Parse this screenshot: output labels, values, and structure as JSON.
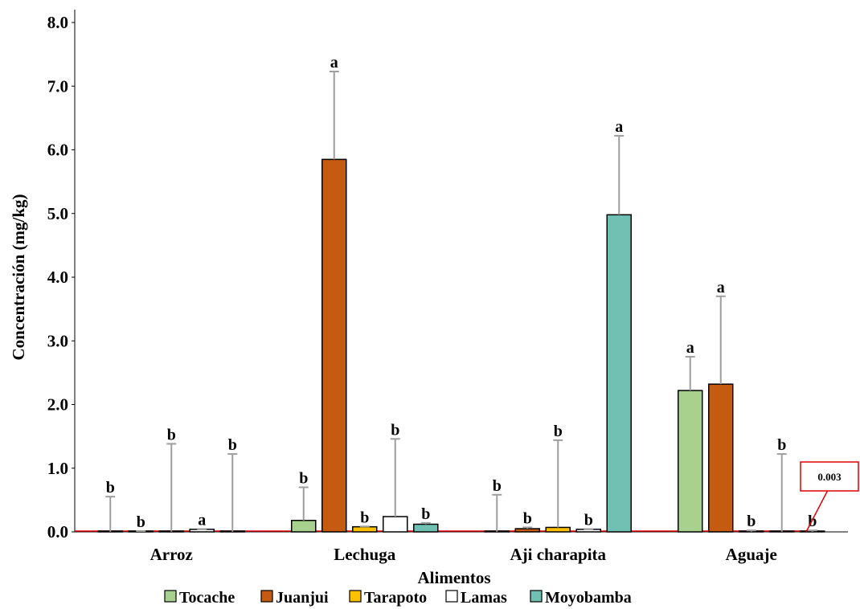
{
  "chart_data": {
    "type": "bar",
    "title": "",
    "xlabel": "Alimentos",
    "ylabel": "Concentración (mg/kg)",
    "ylim": [
      0,
      8
    ],
    "yticks": [
      "0.0",
      "1.0",
      "2.0",
      "3.0",
      "4.0",
      "5.0",
      "6.0",
      "7.0",
      "8.0"
    ],
    "categories": [
      "Arroz",
      "Lechuga",
      "Aji charapita",
      "Aguaje"
    ],
    "legend_position": "bottom",
    "grid": false,
    "series": [
      {
        "name": "Tocache",
        "color": "#a9d18e",
        "values": [
          0.003,
          0.18,
          0.003,
          2.22
        ],
        "error": [
          0.55,
          0.52,
          0.58,
          0.53
        ],
        "letters": [
          "b",
          "b",
          "b",
          "a"
        ]
      },
      {
        "name": "Juanjui",
        "color": "#c55a11",
        "values": [
          0.003,
          5.85,
          0.05,
          2.32
        ],
        "error": [
          0.01,
          1.38,
          0.02,
          1.38
        ],
        "letters": [
          "b",
          "a",
          "b",
          "a"
        ]
      },
      {
        "name": "Tarapoto",
        "color": "#ffc000",
        "values": [
          0.003,
          0.08,
          0.07,
          0.003
        ],
        "error": [
          1.38,
          0.005,
          1.37,
          0.02
        ],
        "letters": [
          "b",
          "b",
          "b",
          "b"
        ]
      },
      {
        "name": "Lamas",
        "color": "#ffffff",
        "values": [
          0.04,
          0.24,
          0.04,
          0.003
        ],
        "error": [
          0.005,
          1.22,
          0.005,
          1.22
        ],
        "letters": [
          "a",
          "b",
          "b",
          "b"
        ]
      },
      {
        "name": "Moyobamba",
        "color": "#70c1b3",
        "values": [
          0.003,
          0.12,
          4.98,
          0.003
        ],
        "error": [
          1.22,
          0.02,
          1.24,
          0.02
        ],
        "letters": [
          "b",
          "b",
          "a",
          "b"
        ]
      }
    ],
    "annotation": "0.003"
  }
}
